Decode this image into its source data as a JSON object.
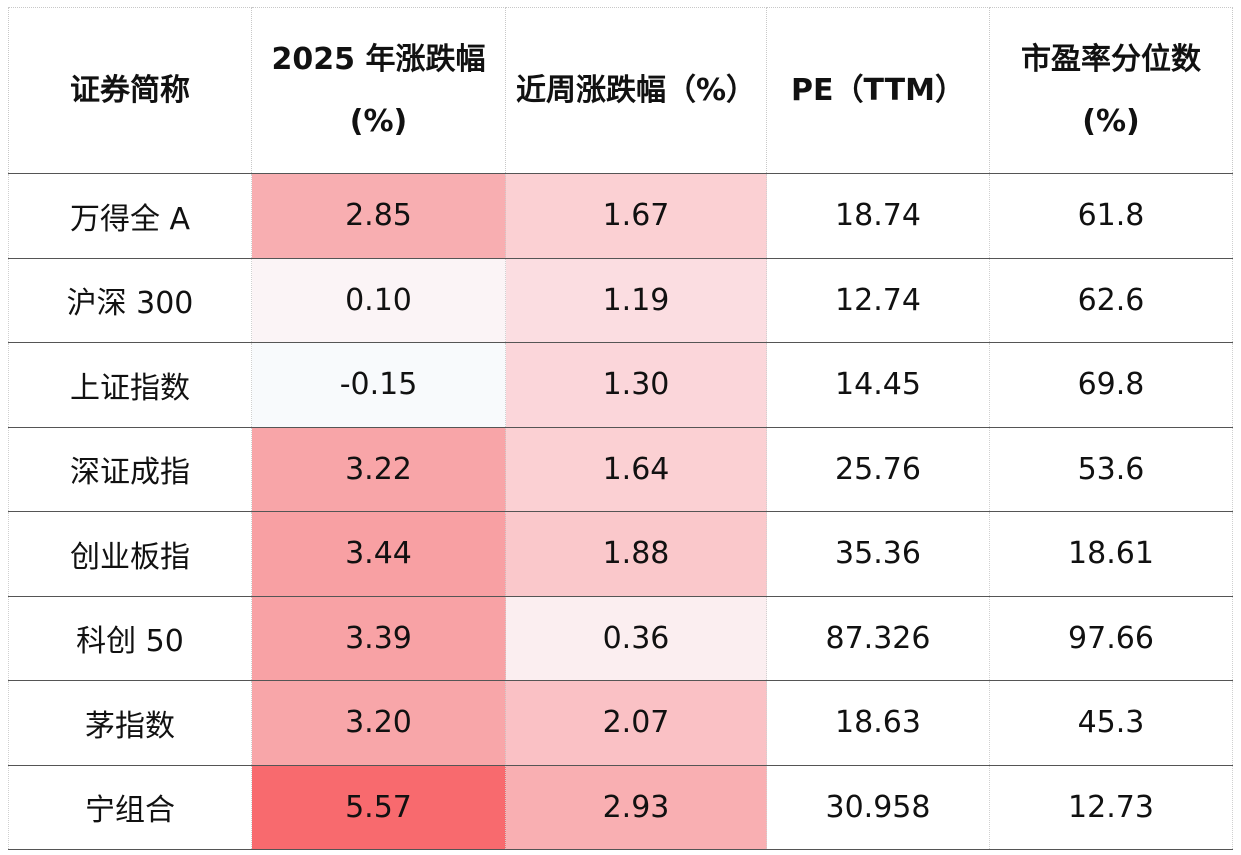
{
  "table": {
    "headers": [
      {
        "line1": "证券简称",
        "line2": ""
      },
      {
        "line1": "2025 年涨跌幅",
        "line2": "(%)"
      },
      {
        "line1": "近周涨跌幅（%）",
        "line2": ""
      },
      {
        "line1": "PE（TTM）",
        "line2": ""
      },
      {
        "line1": "市盈率分位数",
        "line2": "(%)"
      }
    ],
    "rows": [
      {
        "name": "万得全 A",
        "ytd": "2.85",
        "week": "1.67",
        "pe": "18.74",
        "pct": "61.8",
        "ytd_color": "#f8aeb1",
        "week_color": "#fbd0d3"
      },
      {
        "name": "沪深 300",
        "ytd": "0.10",
        "week": "1.19",
        "pe": "12.74",
        "pct": "62.6",
        "ytd_color": "#fbf4f6",
        "week_color": "#fbdde1"
      },
      {
        "name": "上证指数",
        "ytd": "-0.15",
        "week": "1.30",
        "pe": "14.45",
        "pct": "69.8",
        "ytd_color": "#f8fafc",
        "week_color": "#fbd6da"
      },
      {
        "name": "深证成指",
        "ytd": "3.22",
        "week": "1.64",
        "pe": "25.76",
        "pct": "53.6",
        "ytd_color": "#f8a5a8",
        "week_color": "#fbd0d3"
      },
      {
        "name": "创业板指",
        "ytd": "3.44",
        "week": "1.88",
        "pe": "35.36",
        "pct": "18.61",
        "ytd_color": "#f8a0a3",
        "week_color": "#fac8cb"
      },
      {
        "name": "科创 50",
        "ytd": "3.39",
        "week": "0.36",
        "pe": "87.326",
        "pct": "97.66",
        "ytd_color": "#f8a2a5",
        "week_color": "#fbeef0"
      },
      {
        "name": "茅指数",
        "ytd": "3.20",
        "week": "2.07",
        "pe": "18.63",
        "pct": "45.3",
        "ytd_color": "#f8a6a9",
        "week_color": "#fac1c5"
      },
      {
        "name": "宁组合",
        "ytd": "5.57",
        "week": "2.93",
        "pe": "30.958",
        "pct": "12.73",
        "ytd_color": "#f86a6e",
        "week_color": "#f9afb2"
      }
    ]
  }
}
